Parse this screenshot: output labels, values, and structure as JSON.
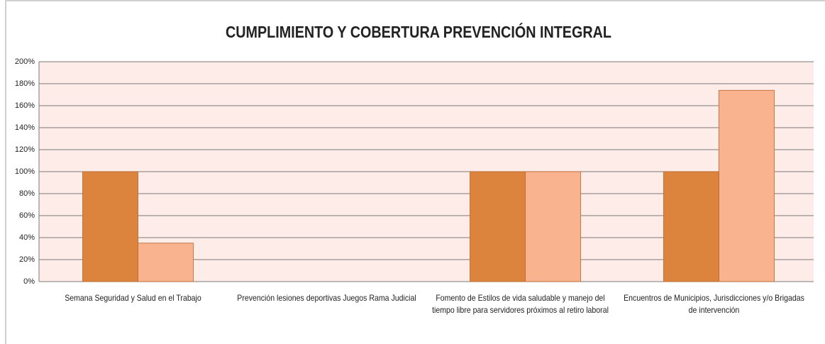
{
  "chart_data": {
    "type": "bar",
    "title": "CUMPLIMIENTO Y COBERTURA PREVENCIÓN INTEGRAL",
    "categories": [
      "Semana Seguridad y Salud  en el Trabajo",
      "Prevención lesiones deportivas Juegos Rama Judicial",
      "Fomento de Estilos de vida  saludable y manejo del tiempo libre para servidores próximos al retiro laboral",
      "Encuentros de Municipios, Jurisdicciones y/o Brigadas de intervención"
    ],
    "series": [
      {
        "color": "#dc843e",
        "values": [
          100,
          0,
          100,
          100
        ]
      },
      {
        "color": "#f9b48f",
        "values": [
          35,
          0,
          100,
          174
        ]
      }
    ],
    "ylim": [
      0,
      200
    ],
    "yticks": [
      {
        "value": 0,
        "label": "0%"
      },
      {
        "value": 20,
        "label": "20%"
      },
      {
        "value": 40,
        "label": "40%"
      },
      {
        "value": 60,
        "label": "60%"
      },
      {
        "value": 80,
        "label": "80%"
      },
      {
        "value": 100,
        "label": "100%"
      },
      {
        "value": 120,
        "label": "120%"
      },
      {
        "value": 140,
        "label": "140%"
      },
      {
        "value": 160,
        "label": "160%"
      },
      {
        "value": 180,
        "label": "180%"
      },
      {
        "value": 200,
        "label": "200%"
      }
    ],
    "grid": true
  }
}
